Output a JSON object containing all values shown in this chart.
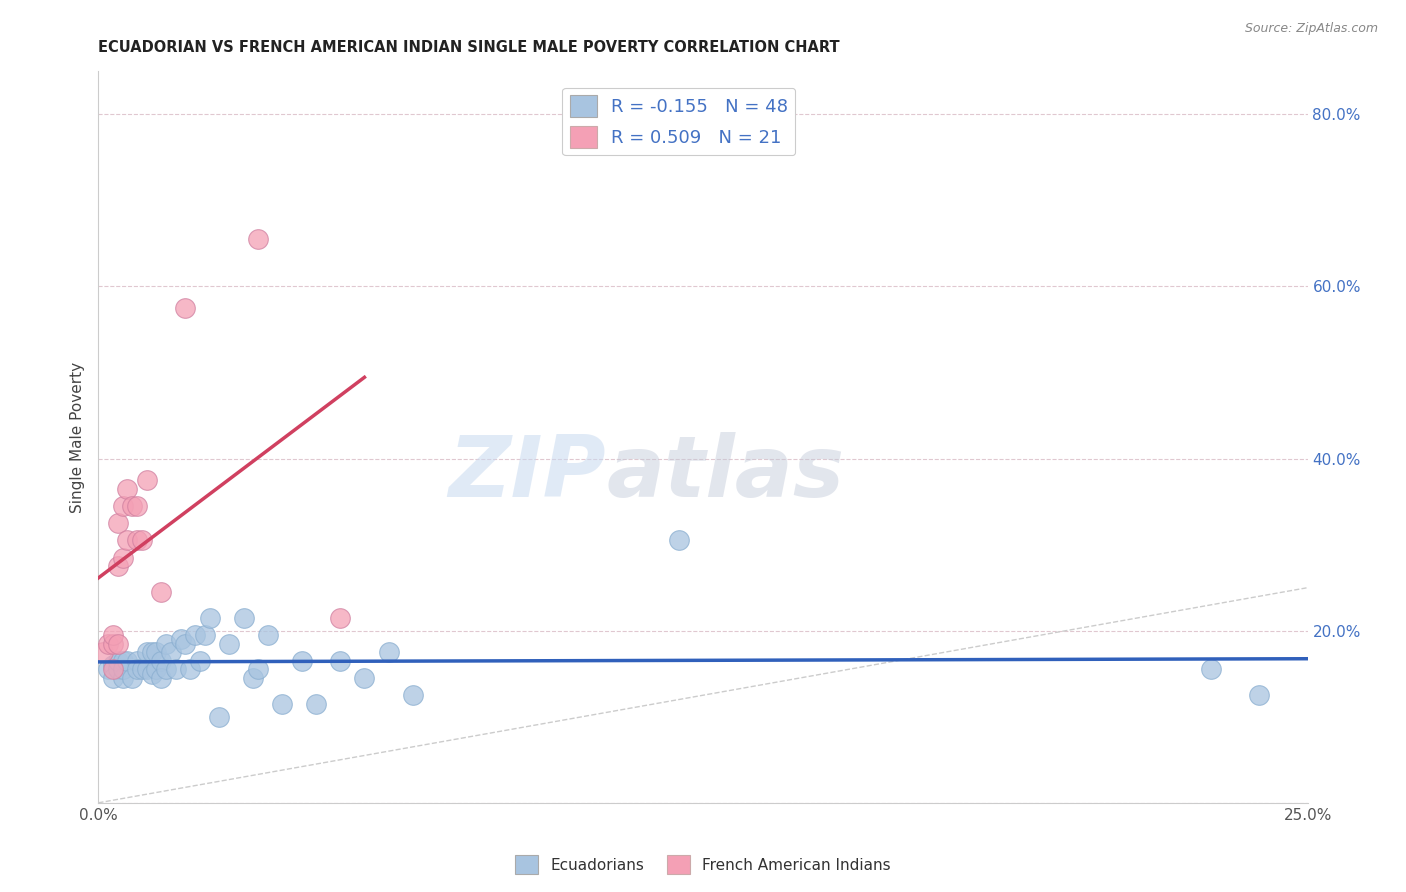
{
  "title": "ECUADORIAN VS FRENCH AMERICAN INDIAN SINGLE MALE POVERTY CORRELATION CHART",
  "source": "Source: ZipAtlas.com",
  "ylabel": "Single Male Poverty",
  "x_min": 0.0,
  "x_max": 0.25,
  "y_min": 0.0,
  "y_max": 0.85,
  "y_ticks": [
    0.0,
    0.2,
    0.4,
    0.6,
    0.8
  ],
  "y_tick_labels": [
    "",
    "20.0%",
    "40.0%",
    "60.0%",
    "80.0%"
  ],
  "x_ticks": [
    0.0,
    0.05,
    0.1,
    0.15,
    0.2,
    0.25
  ],
  "x_tick_labels": [
    "0.0%",
    "",
    "",
    "",
    "",
    "25.0%"
  ],
  "r_ecuadorian": -0.155,
  "n_ecuadorian": 48,
  "r_french": 0.509,
  "n_french": 21,
  "color_ecuadorian": "#a8c4e0",
  "color_french": "#f4a0b5",
  "color_line_ecuadorian": "#3060bb",
  "color_line_french": "#d04060",
  "color_diagonal": "#cccccc",
  "watermark_zip": "ZIP",
  "watermark_atlas": "atlas",
  "ecuadorian_x": [
    0.002,
    0.003,
    0.003,
    0.004,
    0.004,
    0.005,
    0.005,
    0.005,
    0.006,
    0.007,
    0.008,
    0.008,
    0.009,
    0.01,
    0.01,
    0.011,
    0.011,
    0.012,
    0.012,
    0.013,
    0.013,
    0.014,
    0.014,
    0.015,
    0.016,
    0.017,
    0.018,
    0.019,
    0.02,
    0.021,
    0.022,
    0.023,
    0.025,
    0.027,
    0.03,
    0.032,
    0.033,
    0.035,
    0.038,
    0.042,
    0.045,
    0.05,
    0.055,
    0.06,
    0.065,
    0.12,
    0.23,
    0.24
  ],
  "ecuadorian_y": [
    0.155,
    0.16,
    0.145,
    0.155,
    0.165,
    0.165,
    0.145,
    0.155,
    0.165,
    0.145,
    0.165,
    0.155,
    0.155,
    0.175,
    0.155,
    0.175,
    0.15,
    0.175,
    0.155,
    0.165,
    0.145,
    0.185,
    0.155,
    0.175,
    0.155,
    0.19,
    0.185,
    0.155,
    0.195,
    0.165,
    0.195,
    0.215,
    0.1,
    0.185,
    0.215,
    0.145,
    0.155,
    0.195,
    0.115,
    0.165,
    0.115,
    0.165,
    0.145,
    0.175,
    0.125,
    0.305,
    0.155,
    0.125
  ],
  "french_x": [
    0.001,
    0.002,
    0.003,
    0.003,
    0.003,
    0.004,
    0.004,
    0.004,
    0.005,
    0.005,
    0.006,
    0.006,
    0.007,
    0.008,
    0.008,
    0.009,
    0.01,
    0.013,
    0.018,
    0.033,
    0.05
  ],
  "french_y": [
    0.175,
    0.185,
    0.185,
    0.195,
    0.155,
    0.325,
    0.275,
    0.185,
    0.345,
    0.285,
    0.365,
    0.305,
    0.345,
    0.305,
    0.345,
    0.305,
    0.375,
    0.245,
    0.575,
    0.655,
    0.215
  ]
}
